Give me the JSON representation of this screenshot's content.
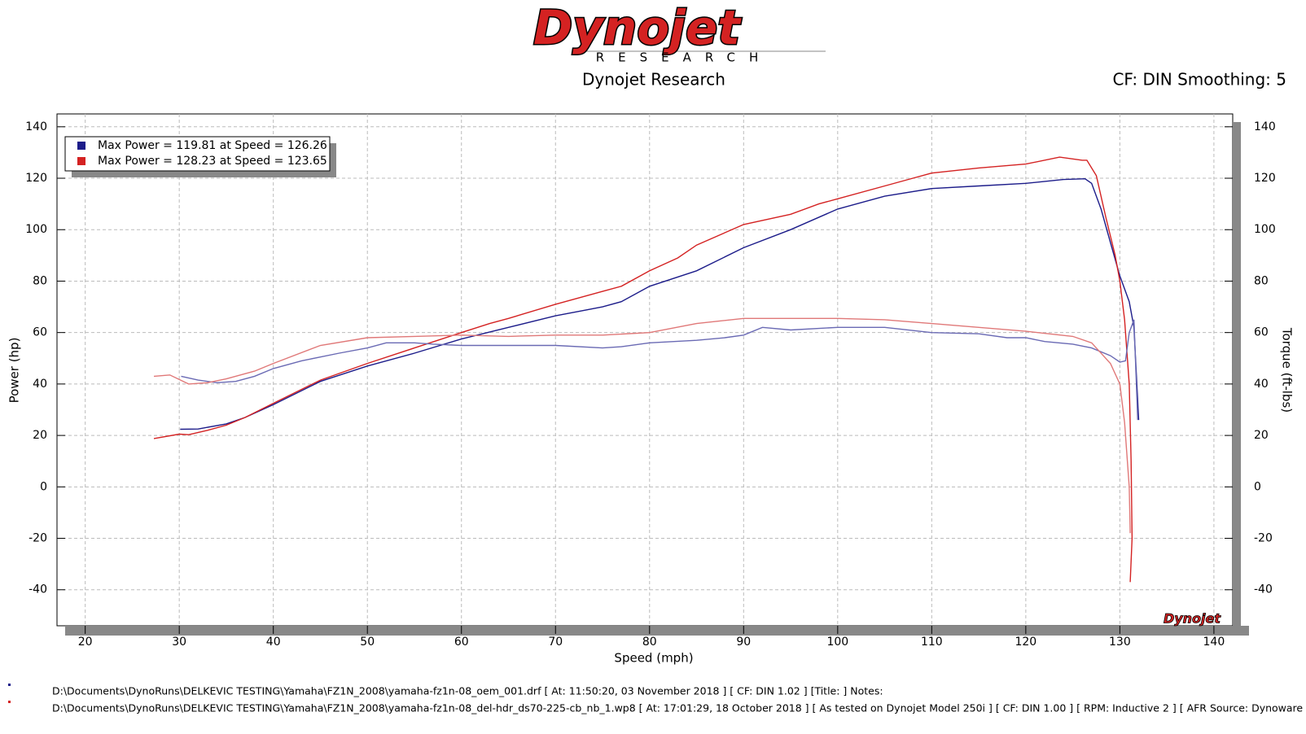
{
  "chart_data": {
    "type": "line",
    "logo": "Dynojet",
    "logo_tagline": "RESEARCH",
    "title": "Dynojet Research",
    "annotation": "CF: DIN Smoothing: 5",
    "x_label": "Speed (mph)",
    "y_label": "Power (hp)",
    "y2_label": "Torque (ft-lbs)",
    "watermark": "Dynojet",
    "xlim": [
      17,
      142
    ],
    "xticks": [
      20,
      30,
      40,
      50,
      60,
      70,
      80,
      90,
      100,
      110,
      120,
      130,
      140
    ],
    "ylim": [
      -54,
      145
    ],
    "yticks": [
      -40,
      -20,
      0,
      20,
      40,
      60,
      80,
      100,
      120,
      140
    ],
    "y2lim": [
      -54,
      145
    ],
    "y2ticks": [
      -40,
      -20,
      0,
      20,
      40,
      60,
      80,
      100,
      120,
      140
    ],
    "grid": true,
    "legend": "upper left",
    "series": [
      {
        "name": "Max Power = 119.81 at Speed = 126.26",
        "color": "#1c1c8a",
        "x": [
          30.1,
          32,
          35,
          37,
          40,
          45,
          50,
          55,
          60,
          65,
          70,
          75,
          77,
          80,
          85,
          90,
          95,
          100,
          105,
          110,
          115,
          120,
          124,
          126.3,
          127,
          128,
          129,
          130,
          131,
          131.5,
          132
        ],
        "values": [
          22.4,
          22.5,
          24.5,
          27,
          32,
          41,
          47,
          52,
          57.5,
          62,
          66.5,
          70,
          72,
          78,
          84,
          93,
          100,
          108,
          113,
          116,
          117,
          118,
          119.5,
          119.8,
          118,
          108,
          95,
          82,
          72,
          62,
          26
        ]
      },
      {
        "name": "Max Power = 128.23 at Speed = 123.65",
        "color": "#d42222",
        "x": [
          27.3,
          30,
          31,
          33,
          35,
          37,
          40,
          45,
          50,
          55,
          60,
          63,
          65,
          70,
          75,
          77,
          80,
          83,
          85,
          90,
          95,
          98,
          100,
          105,
          108,
          110,
          115,
          120,
          123.6,
          126,
          126.5,
          127.5,
          128.5,
          129.5,
          130,
          130.5,
          131,
          131.2,
          131.3,
          131.1
        ],
        "values": [
          18.8,
          20.5,
          20.3,
          22,
          24,
          27,
          32.5,
          41.5,
          48,
          54,
          60,
          63.5,
          65.5,
          71,
          76,
          78,
          84,
          89,
          94,
          102,
          106,
          110,
          112,
          117,
          120,
          122,
          124,
          125.5,
          128.2,
          127,
          127,
          121,
          105,
          90,
          80,
          65,
          40,
          10,
          -20,
          -37
        ]
      },
      {
        "color": "#6a6ab4",
        "axis": "y2",
        "x": [
          30.2,
          32,
          34,
          36,
          38,
          40,
          43,
          47,
          50,
          52,
          55,
          57,
          60,
          65,
          70,
          75,
          77,
          80,
          85,
          88,
          90,
          92,
          95,
          100,
          105,
          110,
          115,
          118,
          120,
          122,
          125,
          127,
          129,
          130,
          130.6,
          131,
          131.5,
          131.9
        ],
        "values": [
          43,
          41.5,
          40.5,
          41,
          43,
          46,
          49,
          52,
          54,
          56,
          56,
          55.5,
          55,
          55,
          55,
          54,
          54.5,
          56,
          57,
          58,
          59,
          62,
          61,
          62,
          62,
          60,
          59.5,
          58,
          58,
          56.5,
          55.5,
          54,
          51,
          48.5,
          49,
          60,
          65,
          26
        ]
      },
      {
        "color": "#e07878",
        "axis": "y2",
        "x": [
          27.3,
          29,
          31,
          33,
          35,
          38,
          40,
          45,
          50,
          55,
          60,
          65,
          70,
          75,
          80,
          85,
          90,
          95,
          100,
          105,
          110,
          115,
          120,
          125,
          127,
          129,
          130,
          130.5,
          131,
          131.1
        ],
        "values": [
          43,
          43.5,
          40,
          40.5,
          42,
          45,
          48,
          55,
          58,
          58.5,
          59,
          58.5,
          59,
          59,
          60,
          63.5,
          65.5,
          65.5,
          65.5,
          65,
          63.5,
          62,
          60.5,
          58.5,
          56,
          48,
          40,
          25,
          0,
          -18
        ]
      }
    ],
    "footer_lines": [
      {
        "color": "#1c1c8a",
        "text": "D:\\Documents\\DynoRuns\\DELKEVIC TESTING\\Yamaha\\FZ1N_2008\\yamaha-fz1n-08_oem_001.drf [ At: 11:50:20, 03 November 2018 ] [ CF: DIN 1.02 ] [Title: ]  Notes:"
      },
      {
        "color": "#d42222",
        "text": "D:\\Documents\\DynoRuns\\DELKEVIC TESTING\\Yamaha\\FZ1N_2008\\yamaha-fz1n-08_del-hdr_ds70-225-cb_nb_1.wp8 [ At: 17:01:29, 18 October 2018 ] [ As tested on Dynojet Model 250i ] [ CF: DIN 1.00 ] [ RPM: Inductive 2 ] [ AFR Source: Dynoware RT WB ]"
      }
    ]
  }
}
